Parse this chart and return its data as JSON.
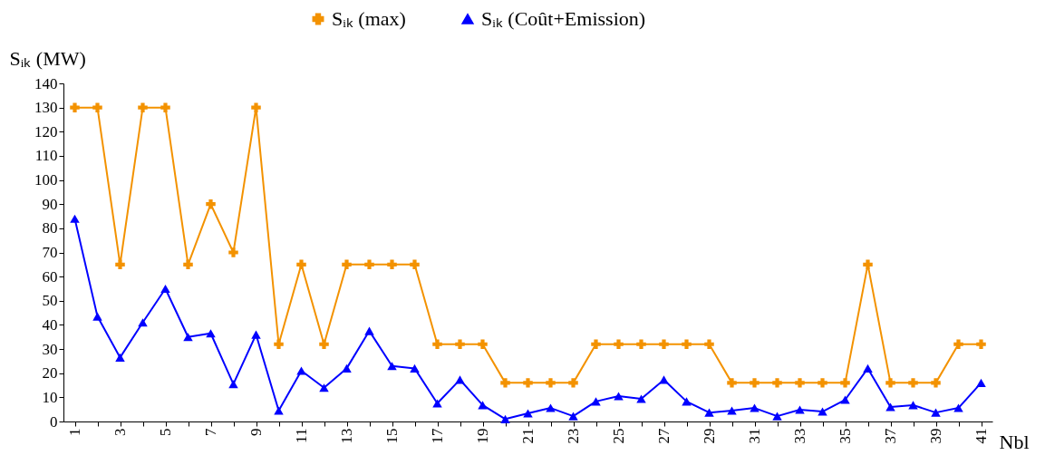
{
  "chart_data": {
    "type": "line",
    "ylabel": "Sᵢₖ (MW)",
    "xlabel": "Nbl",
    "categories": [
      "1",
      null,
      "3",
      null,
      "5",
      null,
      "7",
      null,
      "9",
      null,
      "11",
      null,
      "13",
      null,
      "15",
      null,
      "17",
      null,
      "19",
      null,
      "21",
      null,
      "23",
      null,
      "25",
      null,
      "27",
      null,
      "29",
      null,
      "31",
      null,
      "33",
      null,
      "35",
      null,
      "37",
      null,
      "39",
      null,
      "41"
    ],
    "series": [
      {
        "name": "Sᵢₖ    (max)",
        "color": "#f39200",
        "marker": "cross",
        "values": [
          130,
          130,
          65,
          130,
          130,
          65,
          90,
          70,
          130,
          32,
          65,
          32,
          65,
          65,
          65,
          65,
          32,
          32,
          32,
          16,
          16,
          16,
          16,
          32,
          32,
          32,
          32,
          32,
          32,
          16,
          16,
          16,
          16,
          16,
          16,
          65,
          16,
          16,
          16,
          32,
          32
        ]
      },
      {
        "name": "Sᵢₖ     (Coût+Emission)",
        "color": "#0000ff",
        "marker": "triangle",
        "values": [
          84,
          43.5,
          26.5,
          41,
          55,
          35,
          36.5,
          15.5,
          36,
          4.5,
          21,
          14,
          22,
          37.5,
          23,
          22,
          7.5,
          17.3,
          6.8,
          1,
          3.4,
          5.6,
          2.2,
          8.3,
          10.5,
          9.4,
          17.3,
          8.3,
          3.7,
          4.5,
          5.6,
          2.2,
          4.9,
          4.1,
          9,
          22,
          6,
          6.8,
          3.7,
          5.6,
          16
        ]
      }
    ],
    "ylim": [
      0,
      140
    ],
    "yticks": [
      0,
      10,
      20,
      30,
      40,
      50,
      60,
      70,
      80,
      90,
      100,
      110,
      120,
      130,
      140
    ],
    "grid": false,
    "legend": "top"
  }
}
